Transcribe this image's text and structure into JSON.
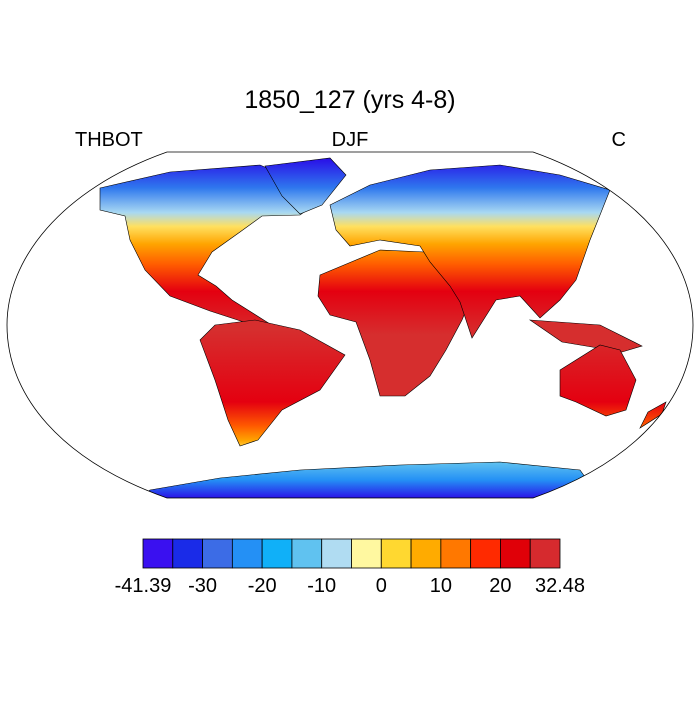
{
  "map": {
    "title": "1850_127 (yrs 4-8)",
    "left_label": "THBOT",
    "center_label": "DJF",
    "right_label": "C",
    "colorbar": {
      "colors": [
        "#3a10f0",
        "#1a2be8",
        "#3c6ce6",
        "#2490f5",
        "#10b0f8",
        "#60c2f0",
        "#b0dcf2",
        "#fff8a0",
        "#ffd830",
        "#ffab00",
        "#ff7800",
        "#ff2a00",
        "#e00008",
        "#d62a2e"
      ],
      "ticks": [
        -41.39,
        -30,
        -20,
        -10,
        0,
        10,
        20,
        32.48
      ]
    }
  }
}
